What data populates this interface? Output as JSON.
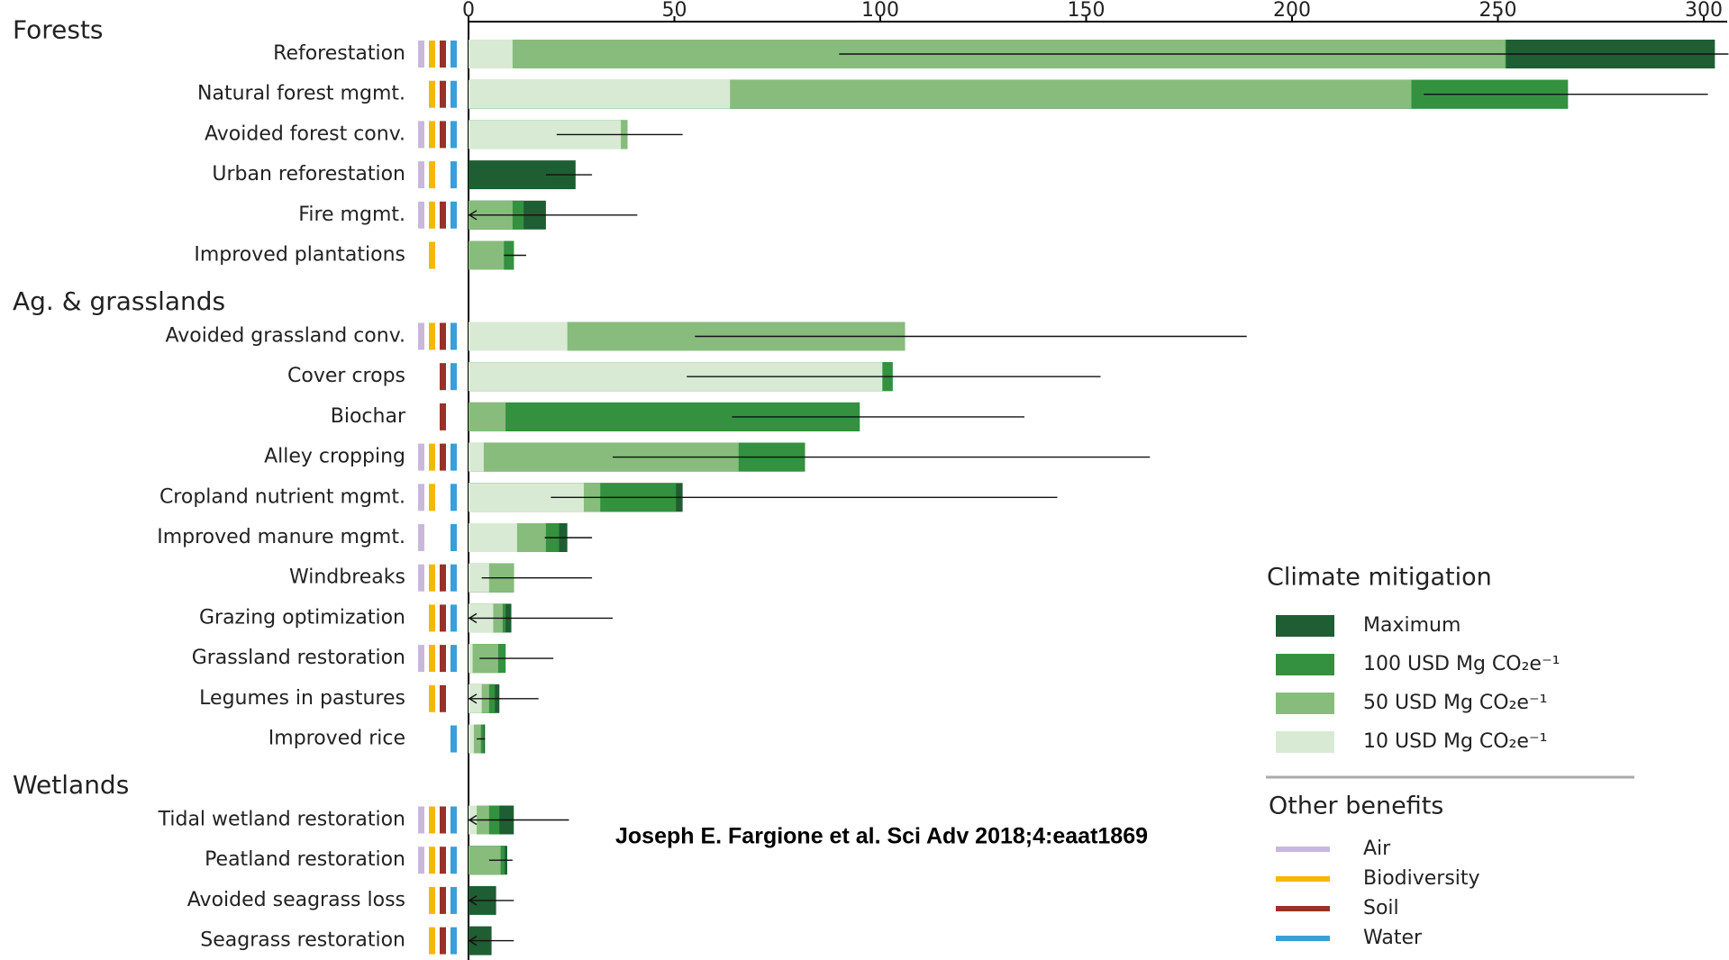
{
  "chart_data": {
    "type": "bar",
    "annotation": "Joseph E. Fargione et al. Sci Adv 2018;4:eaat1869",
    "groups": [
      {
        "name": "Forests",
        "categories": [
          "Reforestation",
          "Natural forest mgmt.",
          "Avoided forest conv.",
          "Urban reforestation",
          "Fire mgmt.",
          "Improved plantations"
        ]
      },
      {
        "name": "Ag. & grasslands",
        "categories": [
          "Avoided grassland conv.",
          "Cover crops",
          "Biochar",
          "Alley cropping",
          "Cropland nutrient mgmt.",
          "Improved manure mgmt.",
          "Windbreaks",
          "Grazing optimization",
          "Grassland restoration",
          "Legumes in pastures",
          "Improved rice"
        ]
      },
      {
        "name": "Wetlands",
        "categories": [
          "Tidal wetland restoration",
          "Peatland restoration",
          "Avoided seagrass loss",
          "Seagrass restoration"
        ]
      }
    ],
    "legend_title": "Climate mitigation",
    "series": [
      {
        "name": "Maximum",
        "color": "#1e5e32",
        "values": [
          302.7,
          267,
          38.6,
          26,
          18.8,
          11,
          106,
          103,
          95,
          81.7,
          52,
          24,
          11,
          10.4,
          9,
          7.5,
          4,
          11,
          9.4,
          6.7,
          5.6
        ]
      },
      {
        "name": "100 USD Mg CO₂e⁻¹",
        "color": "#33913f",
        "values": [
          252,
          267,
          38.6,
          0,
          13.4,
          11,
          106,
          103,
          95,
          81.7,
          50.4,
          22,
          11,
          9,
          9,
          6.4,
          3.7,
          7.5,
          8.8,
          0,
          0
        ]
      },
      {
        "name": "50 USD Mg CO₂e⁻¹",
        "color": "#88bc7d",
        "values": [
          251.8,
          229,
          38.6,
          0,
          10.7,
          8.6,
          106,
          100.5,
          9,
          65.6,
          32,
          18.8,
          11,
          8.3,
          7.2,
          5,
          3,
          5,
          7.8,
          0,
          0
        ]
      },
      {
        "name": "10 USD Mg CO₂e⁻¹",
        "color": "#d8ead4",
        "values": [
          10.7,
          63.5,
          37,
          0,
          0,
          0,
          24,
          100.5,
          0,
          3.7,
          28,
          11.8,
          5,
          6,
          1,
          3.2,
          1.3,
          2,
          0,
          0,
          0
        ]
      }
    ],
    "intervals": [
      [
        90,
        306
      ],
      [
        232,
        301
      ],
      [
        21.4,
        52
      ],
      [
        18.8,
        30
      ],
      [
        0,
        41
      ],
      [
        8.6,
        14
      ],
      [
        55,
        189
      ],
      [
        53,
        153.5
      ],
      [
        64,
        135
      ],
      [
        35,
        165.5
      ],
      [
        20,
        143
      ],
      [
        18.5,
        30
      ],
      [
        3.2,
        30
      ],
      [
        0,
        35
      ],
      [
        2.7,
        20.6
      ],
      [
        0,
        17
      ],
      [
        2,
        4
      ],
      [
        0,
        24.4
      ],
      [
        5,
        10.7
      ],
      [
        0,
        11
      ],
      [
        0,
        11
      ]
    ],
    "benefits_title": "Other benefits",
    "benefits": [
      {
        "name": "Air",
        "color": "#c9b8dc",
        "present": [
          true,
          false,
          true,
          true,
          true,
          false,
          true,
          false,
          false,
          true,
          true,
          true,
          true,
          false,
          true,
          false,
          false,
          true,
          true,
          false,
          false
        ]
      },
      {
        "name": "Biodiversity",
        "color": "#f5b800",
        "present": [
          true,
          true,
          true,
          true,
          true,
          true,
          true,
          false,
          false,
          true,
          true,
          false,
          true,
          true,
          true,
          true,
          false,
          true,
          true,
          true,
          true
        ]
      },
      {
        "name": "Soil",
        "color": "#9b2f2c",
        "present": [
          true,
          true,
          true,
          false,
          true,
          false,
          true,
          true,
          true,
          true,
          false,
          false,
          true,
          true,
          true,
          true,
          false,
          true,
          true,
          true,
          true
        ]
      },
      {
        "name": "Water",
        "color": "#3a9fd8",
        "present": [
          true,
          true,
          true,
          true,
          true,
          false,
          true,
          true,
          false,
          true,
          true,
          true,
          true,
          true,
          true,
          false,
          true,
          true,
          true,
          true,
          true
        ]
      }
    ],
    "xlim": [
      0,
      306
    ],
    "xticks": [
      0,
      50,
      100,
      150,
      200,
      250,
      300
    ]
  }
}
